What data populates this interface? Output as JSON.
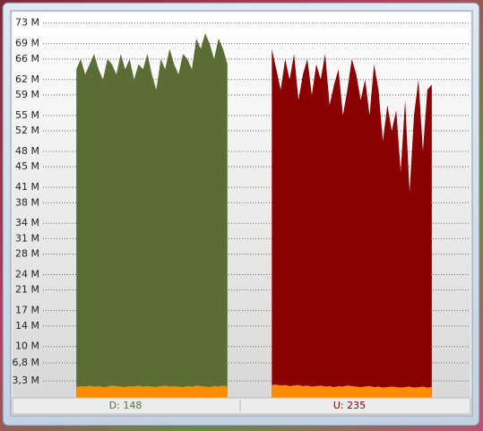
{
  "chart_data": {
    "type": "area",
    "ylim": [
      0,
      74
    ],
    "yticks": [
      {
        "value": 3.3,
        "label": "3,3 M"
      },
      {
        "value": 6.8,
        "label": "6,8 M"
      },
      {
        "value": 10,
        "label": "10 M"
      },
      {
        "value": 14,
        "label": "14 M"
      },
      {
        "value": 17,
        "label": "17 M"
      },
      {
        "value": 21,
        "label": "21 M"
      },
      {
        "value": 24,
        "label": "24 M"
      },
      {
        "value": 28,
        "label": "28 M"
      },
      {
        "value": 31,
        "label": "31 M"
      },
      {
        "value": 34,
        "label": "34 M"
      },
      {
        "value": 38,
        "label": "38 M"
      },
      {
        "value": 41,
        "label": "41 M"
      },
      {
        "value": 45,
        "label": "45 M"
      },
      {
        "value": 48,
        "label": "48 M"
      },
      {
        "value": 52,
        "label": "52 M"
      },
      {
        "value": 55,
        "label": "55 M"
      },
      {
        "value": 59,
        "label": "59 M"
      },
      {
        "value": 62,
        "label": "62 M"
      },
      {
        "value": 66,
        "label": "66 M"
      },
      {
        "value": 69,
        "label": "69 M"
      },
      {
        "value": 73,
        "label": "73 M"
      }
    ],
    "grid": true,
    "series": [
      {
        "name": "D: 148",
        "color": "#5a6e33",
        "values": [
          null,
          null,
          null,
          null,
          null,
          null,
          null,
          64,
          66,
          63,
          65,
          67,
          64,
          62,
          66,
          65,
          63,
          67,
          64,
          66,
          62,
          65,
          64,
          67,
          63,
          60,
          66,
          64,
          68,
          65,
          63,
          67,
          66,
          64,
          70,
          68,
          71,
          69,
          66,
          70,
          68,
          65,
          null,
          null,
          null,
          null,
          null,
          null,
          null,
          null,
          null,
          null,
          null,
          null,
          null,
          null,
          null,
          null,
          null,
          null,
          null,
          null,
          null,
          null,
          null,
          null,
          null,
          null,
          null,
          null,
          null,
          null,
          null,
          null,
          null,
          null,
          null,
          null,
          null,
          null,
          null,
          null,
          null,
          null,
          null,
          null,
          null,
          null,
          null,
          null,
          null,
          null,
          null,
          null,
          null,
          null
        ]
      },
      {
        "name": "U: 235",
        "color": "#8b0000",
        "values": [
          null,
          null,
          null,
          null,
          null,
          null,
          null,
          null,
          null,
          null,
          null,
          null,
          null,
          null,
          null,
          null,
          null,
          null,
          null,
          null,
          null,
          null,
          null,
          null,
          null,
          null,
          null,
          null,
          null,
          null,
          null,
          null,
          null,
          null,
          null,
          null,
          null,
          null,
          null,
          null,
          null,
          null,
          null,
          null,
          null,
          null,
          null,
          null,
          null,
          null,
          null,
          68,
          64,
          60,
          66,
          62,
          67,
          58,
          63,
          66,
          59,
          65,
          62,
          67,
          57,
          61,
          64,
          55,
          60,
          66,
          63,
          58,
          62,
          55,
          65,
          60,
          50,
          57,
          52,
          56,
          44,
          58,
          40,
          55,
          62,
          48,
          60,
          61,
          null,
          null,
          null,
          null,
          null,
          null,
          null,
          null
        ]
      },
      {
        "color": "#ff8c00",
        "values": [
          null,
          null,
          null,
          null,
          null,
          null,
          null,
          2.1,
          2.3,
          2.2,
          2.4,
          2.2,
          2.3,
          2.1,
          2.2,
          2.4,
          2.3,
          2.2,
          2.1,
          2.3,
          2.2,
          2.4,
          2.2,
          2.3,
          2.2,
          2.1,
          2.3,
          2.4,
          2.2,
          2.3,
          2.2,
          2.1,
          2.3,
          2.2,
          2.4,
          2.3,
          2.2,
          2.1,
          2.3,
          2.2,
          2.4,
          2.2,
          null,
          null,
          null,
          null,
          null,
          null,
          null,
          null,
          null,
          2.5,
          2.6,
          2.4,
          2.5,
          2.3,
          2.4,
          2.5,
          2.3,
          2.4,
          2.2,
          2.3,
          2.4,
          2.2,
          2.3,
          2.1,
          2.3,
          2.2,
          2.4,
          2.3,
          2.2,
          2.1,
          2.2,
          2.3,
          2.1,
          2.2,
          2.0,
          2.1,
          2.2,
          2.1,
          2.0,
          2.1,
          2.2,
          2.0,
          2.1,
          2.2,
          2.0,
          2.1,
          null,
          null,
          null,
          null,
          null,
          null,
          null,
          null
        ]
      }
    ]
  }
}
